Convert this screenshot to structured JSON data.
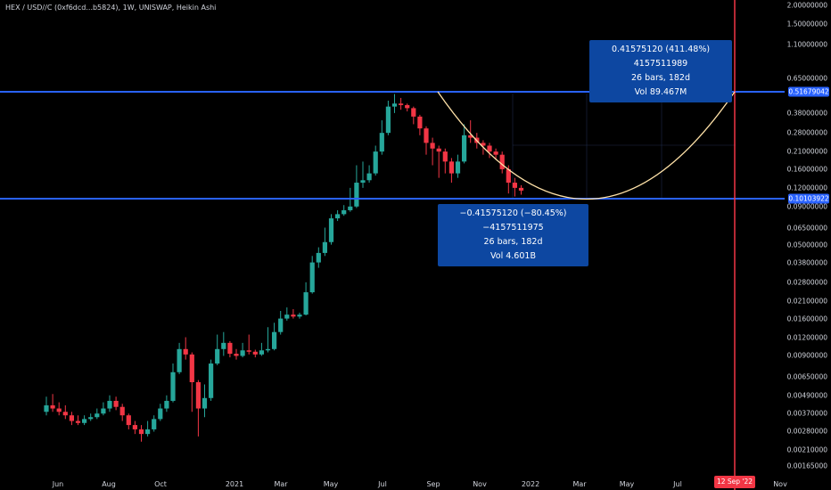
{
  "header": {
    "symbol_title": "HEX / USD//C (0xf6dcd...b5824), 1W, UNISWAP, Heikin Ashi"
  },
  "colors": {
    "background": "#000000",
    "up": "#26a69a",
    "down": "#f23645",
    "horizontal_line": "#2962ff",
    "vertical_line": "#f23645",
    "curve": "#ffe2a8",
    "measure_box": "#0d47a1"
  },
  "price_axis": {
    "ticks": [
      "2.00000000",
      "1.50000000",
      "1.10000000",
      "0.65000000",
      "0.51679042",
      "0.38000000",
      "0.28000000",
      "0.21000000",
      "0.16000000",
      "0.12000000",
      "0.10103922",
      "0.09000000",
      "0.06500000",
      "0.05000000",
      "0.03800000",
      "0.02800000",
      "0.02100000",
      "0.01600000",
      "0.01200000",
      "0.00900000",
      "0.00650000",
      "0.00490000",
      "0.00370000",
      "0.00280000",
      "0.00210000",
      "0.00165000"
    ]
  },
  "time_axis": {
    "ticks": [
      "Jun",
      "Aug",
      "Oct",
      "2021",
      "Mar",
      "May",
      "Jul",
      "Sep",
      "Nov",
      "2022",
      "Mar",
      "May",
      "Jul",
      "Nov"
    ]
  },
  "lines": {
    "upper_level": "0.51679042",
    "lower_level": "0.10103922",
    "vertical_date": "12 Sep '22"
  },
  "measure_up": {
    "line1": "0.41575120 (411.48%) 4157511989",
    "line2": "26 bars, 182d",
    "line3": "Vol 89.467M"
  },
  "measure_down": {
    "line1": "−0.41575120 (−80.45%) −4157511975",
    "line2": "26 bars, 182d",
    "line3": "Vol 4.601B"
  },
  "chart_data": {
    "type": "candlestick",
    "title": "HEX / USD//C (0xf6dcd...b5824), 1W, UNISWAP, Heikin Ashi",
    "scale": "log",
    "ylim": [
      0.00165,
      2.0
    ],
    "x_start": "2020-05-25",
    "interval": "1W",
    "candles": [
      {
        "o": 0.0038,
        "c": 0.0042,
        "h": 0.0048,
        "l": 0.0036
      },
      {
        "o": 0.0042,
        "c": 0.004,
        "h": 0.005,
        "l": 0.0038
      },
      {
        "o": 0.004,
        "c": 0.0038,
        "h": 0.0044,
        "l": 0.0036
      },
      {
        "o": 0.0038,
        "c": 0.0036,
        "h": 0.0042,
        "l": 0.0034
      },
      {
        "o": 0.0036,
        "c": 0.0033,
        "h": 0.0038,
        "l": 0.0031
      },
      {
        "o": 0.0033,
        "c": 0.0032,
        "h": 0.0036,
        "l": 0.0031
      },
      {
        "o": 0.0032,
        "c": 0.0034,
        "h": 0.0036,
        "l": 0.0031
      },
      {
        "o": 0.0034,
        "c": 0.0035,
        "h": 0.0037,
        "l": 0.0033
      },
      {
        "o": 0.0035,
        "c": 0.0037,
        "h": 0.004,
        "l": 0.0034
      },
      {
        "o": 0.0037,
        "c": 0.004,
        "h": 0.0044,
        "l": 0.0036
      },
      {
        "o": 0.004,
        "c": 0.0045,
        "h": 0.0049,
        "l": 0.0038
      },
      {
        "o": 0.0045,
        "c": 0.0041,
        "h": 0.0048,
        "l": 0.0039
      },
      {
        "o": 0.0041,
        "c": 0.0036,
        "h": 0.0043,
        "l": 0.0033
      },
      {
        "o": 0.0036,
        "c": 0.0031,
        "h": 0.0037,
        "l": 0.0029
      },
      {
        "o": 0.0031,
        "c": 0.0029,
        "h": 0.0033,
        "l": 0.0027
      },
      {
        "o": 0.0029,
        "c": 0.0027,
        "h": 0.0031,
        "l": 0.0024
      },
      {
        "o": 0.0027,
        "c": 0.0029,
        "h": 0.0033,
        "l": 0.0026
      },
      {
        "o": 0.0029,
        "c": 0.0034,
        "h": 0.0036,
        "l": 0.0028
      },
      {
        "o": 0.0034,
        "c": 0.004,
        "h": 0.0043,
        "l": 0.0033
      },
      {
        "o": 0.004,
        "c": 0.0045,
        "h": 0.0049,
        "l": 0.0038
      },
      {
        "o": 0.0045,
        "c": 0.007,
        "h": 0.008,
        "l": 0.0044
      },
      {
        "o": 0.007,
        "c": 0.01,
        "h": 0.011,
        "l": 0.0068
      },
      {
        "o": 0.01,
        "c": 0.0092,
        "h": 0.012,
        "l": 0.0085
      },
      {
        "o": 0.0092,
        "c": 0.006,
        "h": 0.0095,
        "l": 0.0038
      },
      {
        "o": 0.006,
        "c": 0.004,
        "h": 0.0062,
        "l": 0.0026
      },
      {
        "o": 0.004,
        "c": 0.0047,
        "h": 0.0058,
        "l": 0.0035
      },
      {
        "o": 0.0047,
        "c": 0.008,
        "h": 0.0085,
        "l": 0.0045
      },
      {
        "o": 0.008,
        "c": 0.01,
        "h": 0.0125,
        "l": 0.0078
      },
      {
        "o": 0.01,
        "c": 0.011,
        "h": 0.013,
        "l": 0.009
      },
      {
        "o": 0.011,
        "c": 0.0093,
        "h": 0.0113,
        "l": 0.0088
      },
      {
        "o": 0.0093,
        "c": 0.009,
        "h": 0.01,
        "l": 0.0085
      },
      {
        "o": 0.009,
        "c": 0.0098,
        "h": 0.011,
        "l": 0.0088
      },
      {
        "o": 0.0098,
        "c": 0.0096,
        "h": 0.0125,
        "l": 0.0092
      },
      {
        "o": 0.0096,
        "c": 0.0092,
        "h": 0.0099,
        "l": 0.0088
      },
      {
        "o": 0.0092,
        "c": 0.0098,
        "h": 0.011,
        "l": 0.009
      },
      {
        "o": 0.0098,
        "c": 0.01,
        "h": 0.014,
        "l": 0.0095
      },
      {
        "o": 0.01,
        "c": 0.013,
        "h": 0.015,
        "l": 0.0098
      },
      {
        "o": 0.013,
        "c": 0.016,
        "h": 0.018,
        "l": 0.0125
      },
      {
        "o": 0.016,
        "c": 0.017,
        "h": 0.019,
        "l": 0.0155
      },
      {
        "o": 0.017,
        "c": 0.0165,
        "h": 0.0185,
        "l": 0.016
      },
      {
        "o": 0.0165,
        "c": 0.017,
        "h": 0.0175,
        "l": 0.016
      },
      {
        "o": 0.017,
        "c": 0.024,
        "h": 0.028,
        "l": 0.0168
      },
      {
        "o": 0.024,
        "c": 0.038,
        "h": 0.042,
        "l": 0.0235
      },
      {
        "o": 0.038,
        "c": 0.044,
        "h": 0.048,
        "l": 0.035
      },
      {
        "o": 0.044,
        "c": 0.052,
        "h": 0.065,
        "l": 0.042
      },
      {
        "o": 0.052,
        "c": 0.075,
        "h": 0.08,
        "l": 0.05
      },
      {
        "o": 0.075,
        "c": 0.08,
        "h": 0.085,
        "l": 0.072
      },
      {
        "o": 0.08,
        "c": 0.085,
        "h": 0.092,
        "l": 0.078
      },
      {
        "o": 0.085,
        "c": 0.09,
        "h": 0.12,
        "l": 0.083
      },
      {
        "o": 0.09,
        "c": 0.13,
        "h": 0.17,
        "l": 0.088
      },
      {
        "o": 0.13,
        "c": 0.135,
        "h": 0.18,
        "l": 0.12
      },
      {
        "o": 0.135,
        "c": 0.15,
        "h": 0.17,
        "l": 0.13
      },
      {
        "o": 0.15,
        "c": 0.21,
        "h": 0.23,
        "l": 0.145
      },
      {
        "o": 0.21,
        "c": 0.28,
        "h": 0.34,
        "l": 0.2
      },
      {
        "o": 0.28,
        "c": 0.42,
        "h": 0.46,
        "l": 0.27
      },
      {
        "o": 0.42,
        "c": 0.44,
        "h": 0.51,
        "l": 0.38
      },
      {
        "o": 0.44,
        "c": 0.43,
        "h": 0.48,
        "l": 0.4
      },
      {
        "o": 0.43,
        "c": 0.41,
        "h": 0.44,
        "l": 0.39
      },
      {
        "o": 0.41,
        "c": 0.36,
        "h": 0.42,
        "l": 0.32
      },
      {
        "o": 0.36,
        "c": 0.3,
        "h": 0.37,
        "l": 0.27
      },
      {
        "o": 0.3,
        "c": 0.24,
        "h": 0.31,
        "l": 0.2
      },
      {
        "o": 0.24,
        "c": 0.22,
        "h": 0.26,
        "l": 0.17
      },
      {
        "o": 0.22,
        "c": 0.21,
        "h": 0.23,
        "l": 0.14
      },
      {
        "o": 0.21,
        "c": 0.18,
        "h": 0.22,
        "l": 0.15
      },
      {
        "o": 0.18,
        "c": 0.15,
        "h": 0.19,
        "l": 0.13
      },
      {
        "o": 0.15,
        "c": 0.18,
        "h": 0.2,
        "l": 0.14
      },
      {
        "o": 0.18,
        "c": 0.27,
        "h": 0.32,
        "l": 0.175
      },
      {
        "o": 0.27,
        "c": 0.26,
        "h": 0.34,
        "l": 0.24
      },
      {
        "o": 0.26,
        "c": 0.24,
        "h": 0.28,
        "l": 0.22
      },
      {
        "o": 0.24,
        "c": 0.23,
        "h": 0.25,
        "l": 0.2
      },
      {
        "o": 0.23,
        "c": 0.21,
        "h": 0.24,
        "l": 0.19
      },
      {
        "o": 0.21,
        "c": 0.2,
        "h": 0.22,
        "l": 0.185
      },
      {
        "o": 0.2,
        "c": 0.16,
        "h": 0.21,
        "l": 0.15
      },
      {
        "o": 0.16,
        "c": 0.13,
        "h": 0.17,
        "l": 0.11
      },
      {
        "o": 0.13,
        "c": 0.12,
        "h": 0.14,
        "l": 0.105
      },
      {
        "o": 0.12,
        "c": 0.115,
        "h": 0.125,
        "l": 0.108
      }
    ]
  }
}
